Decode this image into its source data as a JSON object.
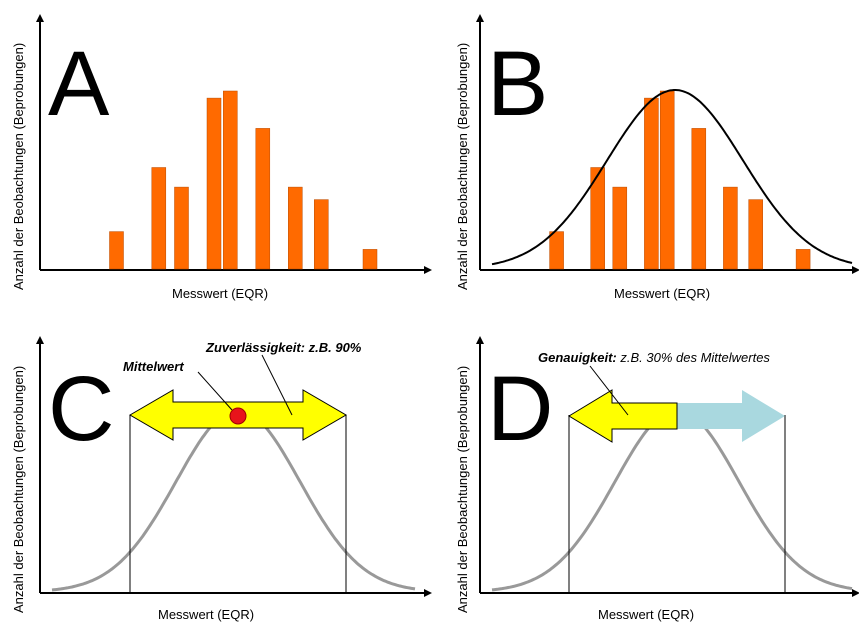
{
  "panels": [
    {
      "letter": "A",
      "ylabel": "Anzahl der Beobachtungen (Beprobungen)",
      "xlabel": "Messwert (EQR)"
    },
    {
      "letter": "B",
      "ylabel": "Anzahl der Beobachtungen (Beprobungen)",
      "xlabel": "Messwert (EQR)"
    },
    {
      "letter": "C",
      "ylabel": "Anzahl der Beobachtungen (Beprobungen)",
      "xlabel": "Messwert (EQR)"
    },
    {
      "letter": "D",
      "ylabel": "Anzahl der Beobachtungen (Beprobungen)",
      "xlabel": "Messwert (EQR)"
    }
  ],
  "annotations": {
    "mittelwert": "Mittelwert",
    "zuverl_bold": "Zuverlässigkeit:",
    "zuverl_rest": " z.B. 90%",
    "genau_bold": "Genauigkeit:",
    "genau_rest": " z.B. 30% des Mittelwertes"
  },
  "histogram": {
    "values": [
      0.21,
      0.57,
      0.46,
      0.96,
      1.0,
      0.79,
      0.46,
      0.39,
      0.11
    ],
    "positions": [
      1,
      2.3,
      3.0,
      4.0,
      4.5,
      5.5,
      6.5,
      7.3,
      8.8
    ]
  },
  "colors": {
    "bar": "#ff6a00",
    "arrow_yellow": "#ffff00",
    "arrow_blue": "#a9d8df",
    "mean_dot": "#e8141b",
    "curve_gray": "#999999"
  }
}
